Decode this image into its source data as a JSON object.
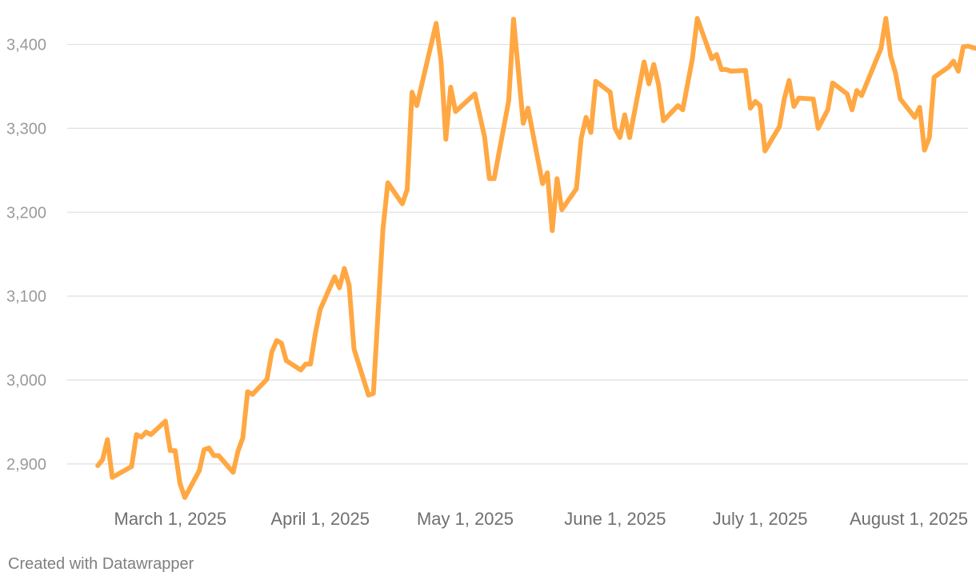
{
  "footer": {
    "credit": "Created with Datawrapper"
  },
  "chart_data": {
    "type": "line",
    "title": "",
    "xlabel": "",
    "ylabel": "",
    "x_range": [
      "2025-02-10",
      "2025-08-13"
    ],
    "ylim": [
      2858,
      3430
    ],
    "y_ticks": [
      2900,
      3000,
      3100,
      3200,
      3300,
      3400
    ],
    "y_tick_labels": [
      "2,900",
      "3,000",
      "3,100",
      "3,200",
      "3,300",
      "3,400"
    ],
    "x_ticks": [
      "2025-03-01",
      "2025-04-01",
      "2025-05-01",
      "2025-06-01",
      "2025-07-01",
      "2025-08-01"
    ],
    "x_tick_labels": [
      "March 1, 2025",
      "April 1, 2025",
      "May 1, 2025",
      "June 1, 2025",
      "July 1, 2025",
      "August 1, 2025"
    ],
    "grid": true,
    "colors": {
      "line": "#ffa843",
      "grid": "#e1e1e1"
    },
    "series": [
      {
        "values": [
          [
            "2025-02-14",
            2898
          ],
          [
            "2025-02-15",
            2905
          ],
          [
            "2025-02-16",
            2929
          ],
          [
            "2025-02-17",
            2884
          ],
          [
            "2025-02-21",
            2897
          ],
          [
            "2025-02-22",
            2935
          ],
          [
            "2025-02-23",
            2932
          ],
          [
            "2025-02-24",
            2938
          ],
          [
            "2025-02-25",
            2935
          ],
          [
            "2025-02-28",
            2951
          ],
          [
            "2025-03-01",
            2916
          ],
          [
            "2025-03-02",
            2916
          ],
          [
            "2025-03-03",
            2877
          ],
          [
            "2025-03-04",
            2860
          ],
          [
            "2025-03-07",
            2892
          ],
          [
            "2025-03-08",
            2917
          ],
          [
            "2025-03-09",
            2919
          ],
          [
            "2025-03-10",
            2910
          ],
          [
            "2025-03-11",
            2910
          ],
          [
            "2025-03-14",
            2890
          ],
          [
            "2025-03-15",
            2915
          ],
          [
            "2025-03-16",
            2931
          ],
          [
            "2025-03-17",
            2986
          ],
          [
            "2025-03-18",
            2983
          ],
          [
            "2025-03-21",
            3001
          ],
          [
            "2025-03-22",
            3033
          ],
          [
            "2025-03-23",
            3047
          ],
          [
            "2025-03-24",
            3044
          ],
          [
            "2025-03-25",
            3023
          ],
          [
            "2025-03-28",
            3012
          ],
          [
            "2025-03-29",
            3019
          ],
          [
            "2025-03-30",
            3019
          ],
          [
            "2025-03-31",
            3055
          ],
          [
            "2025-04-01",
            3084
          ],
          [
            "2025-04-04",
            3123
          ],
          [
            "2025-04-05",
            3110
          ],
          [
            "2025-04-06",
            3133
          ],
          [
            "2025-04-07",
            3113
          ],
          [
            "2025-04-08",
            3037
          ],
          [
            "2025-04-11",
            2982
          ],
          [
            "2025-04-12",
            2984
          ],
          [
            "2025-04-14",
            3180
          ],
          [
            "2025-04-15",
            3235
          ],
          [
            "2025-04-18",
            3210
          ],
          [
            "2025-04-19",
            3227
          ],
          [
            "2025-04-20",
            3343
          ],
          [
            "2025-04-21",
            3327
          ],
          [
            "2025-04-25",
            3425
          ],
          [
            "2025-04-26",
            3380
          ],
          [
            "2025-04-27",
            3287
          ],
          [
            "2025-04-28",
            3349
          ],
          [
            "2025-04-29",
            3320
          ],
          [
            "2025-05-03",
            3341
          ],
          [
            "2025-05-05",
            3290
          ],
          [
            "2025-05-06",
            3240
          ],
          [
            "2025-05-07",
            3240
          ],
          [
            "2025-05-10",
            3333
          ],
          [
            "2025-05-11",
            3430
          ],
          [
            "2025-05-12",
            3368
          ],
          [
            "2025-05-13",
            3306
          ],
          [
            "2025-05-14",
            3324
          ],
          [
            "2025-05-17",
            3234
          ],
          [
            "2025-05-18",
            3247
          ],
          [
            "2025-05-19",
            3178
          ],
          [
            "2025-05-20",
            3240
          ],
          [
            "2025-05-21",
            3203
          ],
          [
            "2025-05-24",
            3228
          ],
          [
            "2025-05-25",
            3288
          ],
          [
            "2025-05-26",
            3313
          ],
          [
            "2025-05-27",
            3295
          ],
          [
            "2025-05-28",
            3356
          ],
          [
            "2025-05-31",
            3343
          ],
          [
            "2025-06-01",
            3300
          ],
          [
            "2025-06-02",
            3289
          ],
          [
            "2025-06-03",
            3316
          ],
          [
            "2025-06-04",
            3289
          ],
          [
            "2025-06-07",
            3379
          ],
          [
            "2025-06-08",
            3353
          ],
          [
            "2025-06-09",
            3376
          ],
          [
            "2025-06-10",
            3352
          ],
          [
            "2025-06-11",
            3309
          ],
          [
            "2025-06-14",
            3327
          ],
          [
            "2025-06-15",
            3322
          ],
          [
            "2025-06-17",
            3383
          ],
          [
            "2025-06-18",
            3431
          ],
          [
            "2025-06-21",
            3383
          ],
          [
            "2025-06-22",
            3388
          ],
          [
            "2025-06-23",
            3370
          ],
          [
            "2025-06-24",
            3370
          ],
          [
            "2025-06-25",
            3368
          ],
          [
            "2025-06-28",
            3369
          ],
          [
            "2025-06-29",
            3324
          ],
          [
            "2025-06-30",
            3332
          ],
          [
            "2025-07-01",
            3327
          ],
          [
            "2025-07-02",
            3273
          ],
          [
            "2025-07-05",
            3302
          ],
          [
            "2025-07-06",
            3335
          ],
          [
            "2025-07-07",
            3357
          ],
          [
            "2025-07-08",
            3326
          ],
          [
            "2025-07-09",
            3336
          ],
          [
            "2025-07-12",
            3335
          ],
          [
            "2025-07-13",
            3300
          ],
          [
            "2025-07-15",
            3322
          ],
          [
            "2025-07-16",
            3354
          ],
          [
            "2025-07-19",
            3341
          ],
          [
            "2025-07-20",
            3322
          ],
          [
            "2025-07-21",
            3345
          ],
          [
            "2025-07-22",
            3339
          ],
          [
            "2025-07-26",
            3395
          ],
          [
            "2025-07-27",
            3431
          ],
          [
            "2025-07-28",
            3386
          ],
          [
            "2025-07-29",
            3366
          ],
          [
            "2025-07-30",
            3335
          ],
          [
            "2025-08-02",
            3313
          ],
          [
            "2025-08-03",
            3325
          ],
          [
            "2025-08-04",
            3274
          ],
          [
            "2025-08-05",
            3289
          ],
          [
            "2025-08-06",
            3361
          ],
          [
            "2025-08-09",
            3373
          ],
          [
            "2025-08-10",
            3380
          ],
          [
            "2025-08-11",
            3368
          ],
          [
            "2025-08-12",
            3397
          ],
          [
            "2025-08-13",
            3398
          ],
          [
            "2025-08-16",
            3393
          ]
        ]
      }
    ]
  }
}
